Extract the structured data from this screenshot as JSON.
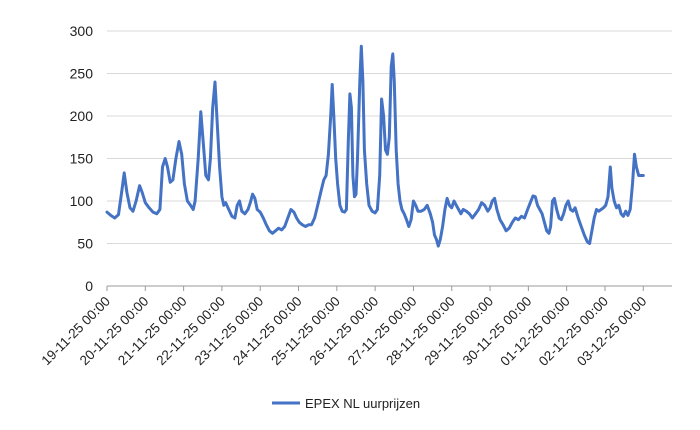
{
  "chart_data": {
    "type": "line",
    "title": "",
    "xlabel": "",
    "ylabel": "",
    "ylim": [
      0,
      300
    ],
    "yticks": [
      0,
      50,
      100,
      150,
      200,
      250,
      300
    ],
    "grid": true,
    "legend_position": "bottom",
    "line_color": "#4472c4",
    "x_tick_labels": [
      "19-11-25 00:00",
      "20-11-25 00:00",
      "21-11-25 00:00",
      "22-11-25 00:00",
      "23-11-25 00:00",
      "24-11-25 00:00",
      "25-11-25 00:00",
      "26-11-25 00:00",
      "27-11-25 00:00",
      "28-11-25 00:00",
      "29-11-25 00:00",
      "30-11-25 00:00",
      "01-12-25 00:00",
      "02-12-25 00:00",
      "03-12-25 00:00"
    ],
    "series": [
      {
        "name": "EPEX NL uurprijzen",
        "x_unit": "days since 19-11-25 00:00",
        "points": [
          [
            0.0,
            87
          ],
          [
            0.1,
            83
          ],
          [
            0.2,
            80
          ],
          [
            0.3,
            84
          ],
          [
            0.38,
            110
          ],
          [
            0.45,
            133
          ],
          [
            0.52,
            110
          ],
          [
            0.6,
            92
          ],
          [
            0.68,
            88
          ],
          [
            0.76,
            100
          ],
          [
            0.85,
            118
          ],
          [
            0.92,
            110
          ],
          [
            1.0,
            98
          ],
          [
            1.1,
            92
          ],
          [
            1.2,
            87
          ],
          [
            1.3,
            85
          ],
          [
            1.38,
            90
          ],
          [
            1.45,
            140
          ],
          [
            1.52,
            150
          ],
          [
            1.58,
            140
          ],
          [
            1.65,
            122
          ],
          [
            1.72,
            125
          ],
          [
            1.8,
            150
          ],
          [
            1.88,
            170
          ],
          [
            1.95,
            155
          ],
          [
            2.02,
            120
          ],
          [
            2.1,
            100
          ],
          [
            2.18,
            95
          ],
          [
            2.25,
            90
          ],
          [
            2.3,
            100
          ],
          [
            2.38,
            150
          ],
          [
            2.45,
            205
          ],
          [
            2.52,
            165
          ],
          [
            2.58,
            130
          ],
          [
            2.65,
            125
          ],
          [
            2.7,
            150
          ],
          [
            2.76,
            210
          ],
          [
            2.82,
            240
          ],
          [
            2.88,
            190
          ],
          [
            2.94,
            140
          ],
          [
            3.0,
            105
          ],
          [
            3.05,
            95
          ],
          [
            3.1,
            98
          ],
          [
            3.18,
            90
          ],
          [
            3.26,
            82
          ],
          [
            3.34,
            80
          ],
          [
            3.4,
            95
          ],
          [
            3.46,
            100
          ],
          [
            3.52,
            88
          ],
          [
            3.6,
            85
          ],
          [
            3.68,
            90
          ],
          [
            3.74,
            98
          ],
          [
            3.8,
            108
          ],
          [
            3.86,
            103
          ],
          [
            3.92,
            90
          ],
          [
            4.0,
            87
          ],
          [
            4.08,
            80
          ],
          [
            4.16,
            72
          ],
          [
            4.24,
            65
          ],
          [
            4.32,
            62
          ],
          [
            4.4,
            65
          ],
          [
            4.48,
            68
          ],
          [
            4.56,
            66
          ],
          [
            4.64,
            70
          ],
          [
            4.72,
            80
          ],
          [
            4.8,
            90
          ],
          [
            4.88,
            87
          ],
          [
            4.95,
            80
          ],
          [
            5.02,
            75
          ],
          [
            5.1,
            72
          ],
          [
            5.18,
            70
          ],
          [
            5.26,
            72
          ],
          [
            5.34,
            72
          ],
          [
            5.42,
            80
          ],
          [
            5.5,
            95
          ],
          [
            5.58,
            110
          ],
          [
            5.66,
            125
          ],
          [
            5.72,
            130
          ],
          [
            5.78,
            155
          ],
          [
            5.84,
            200
          ],
          [
            5.88,
            237
          ],
          [
            5.92,
            200
          ],
          [
            5.97,
            150
          ],
          [
            6.02,
            120
          ],
          [
            6.08,
            95
          ],
          [
            6.14,
            88
          ],
          [
            6.2,
            87
          ],
          [
            6.25,
            90
          ],
          [
            6.3,
            170
          ],
          [
            6.34,
            226
          ],
          [
            6.38,
            210
          ],
          [
            6.42,
            130
          ],
          [
            6.46,
            105
          ],
          [
            6.5,
            108
          ],
          [
            6.54,
            150
          ],
          [
            6.6,
            240
          ],
          [
            6.64,
            282
          ],
          [
            6.68,
            240
          ],
          [
            6.72,
            160
          ],
          [
            6.78,
            120
          ],
          [
            6.84,
            95
          ],
          [
            6.92,
            88
          ],
          [
            7.0,
            86
          ],
          [
            7.06,
            90
          ],
          [
            7.12,
            130
          ],
          [
            7.17,
            220
          ],
          [
            7.22,
            200
          ],
          [
            7.27,
            160
          ],
          [
            7.32,
            155
          ],
          [
            7.37,
            175
          ],
          [
            7.42,
            258
          ],
          [
            7.46,
            273
          ],
          [
            7.5,
            240
          ],
          [
            7.55,
            160
          ],
          [
            7.6,
            120
          ],
          [
            7.65,
            100
          ],
          [
            7.7,
            90
          ],
          [
            7.76,
            85
          ],
          [
            7.82,
            78
          ],
          [
            7.88,
            70
          ],
          [
            7.94,
            78
          ],
          [
            8.0,
            100
          ],
          [
            8.06,
            95
          ],
          [
            8.12,
            88
          ],
          [
            8.2,
            88
          ],
          [
            8.28,
            90
          ],
          [
            8.36,
            95
          ],
          [
            8.44,
            85
          ],
          [
            8.5,
            75
          ],
          [
            8.55,
            60
          ],
          [
            8.6,
            55
          ],
          [
            8.65,
            47
          ],
          [
            8.7,
            55
          ],
          [
            8.76,
            70
          ],
          [
            8.82,
            90
          ],
          [
            8.88,
            103
          ],
          [
            8.94,
            95
          ],
          [
            9.0,
            92
          ],
          [
            9.06,
            100
          ],
          [
            9.12,
            95
          ],
          [
            9.18,
            90
          ],
          [
            9.24,
            85
          ],
          [
            9.3,
            90
          ],
          [
            9.38,
            88
          ],
          [
            9.46,
            85
          ],
          [
            9.54,
            80
          ],
          [
            9.62,
            85
          ],
          [
            9.7,
            90
          ],
          [
            9.78,
            98
          ],
          [
            9.86,
            95
          ],
          [
            9.94,
            88
          ],
          [
            10.0,
            92
          ],
          [
            10.06,
            100
          ],
          [
            10.12,
            103
          ],
          [
            10.18,
            90
          ],
          [
            10.26,
            78
          ],
          [
            10.34,
            72
          ],
          [
            10.42,
            65
          ],
          [
            10.5,
            68
          ],
          [
            10.58,
            75
          ],
          [
            10.66,
            80
          ],
          [
            10.74,
            78
          ],
          [
            10.82,
            82
          ],
          [
            10.9,
            80
          ],
          [
            10.98,
            90
          ],
          [
            11.05,
            98
          ],
          [
            11.12,
            106
          ],
          [
            11.18,
            105
          ],
          [
            11.24,
            95
          ],
          [
            11.3,
            90
          ],
          [
            11.36,
            85
          ],
          [
            11.42,
            75
          ],
          [
            11.48,
            65
          ],
          [
            11.54,
            62
          ],
          [
            11.58,
            70
          ],
          [
            11.63,
            100
          ],
          [
            11.68,
            103
          ],
          [
            11.74,
            90
          ],
          [
            11.8,
            80
          ],
          [
            11.86,
            78
          ],
          [
            11.92,
            85
          ],
          [
            11.98,
            95
          ],
          [
            12.04,
            100
          ],
          [
            12.1,
            90
          ],
          [
            12.16,
            88
          ],
          [
            12.22,
            92
          ],
          [
            12.3,
            80
          ],
          [
            12.38,
            70
          ],
          [
            12.46,
            60
          ],
          [
            12.54,
            52
          ],
          [
            12.6,
            50
          ],
          [
            12.66,
            65
          ],
          [
            12.72,
            80
          ],
          [
            12.78,
            90
          ],
          [
            12.84,
            88
          ],
          [
            12.9,
            90
          ],
          [
            12.96,
            92
          ],
          [
            13.02,
            95
          ],
          [
            13.08,
            105
          ],
          [
            13.14,
            140
          ],
          [
            13.18,
            115
          ],
          [
            13.24,
            100
          ],
          [
            13.3,
            92
          ],
          [
            13.36,
            95
          ],
          [
            13.42,
            85
          ],
          [
            13.48,
            82
          ],
          [
            13.54,
            88
          ],
          [
            13.6,
            83
          ],
          [
            13.66,
            90
          ],
          [
            13.72,
            120
          ],
          [
            13.77,
            155
          ],
          [
            13.82,
            140
          ],
          [
            13.88,
            130
          ],
          [
            13.95,
            130
          ],
          [
            14.0,
            130
          ]
        ]
      }
    ]
  }
}
